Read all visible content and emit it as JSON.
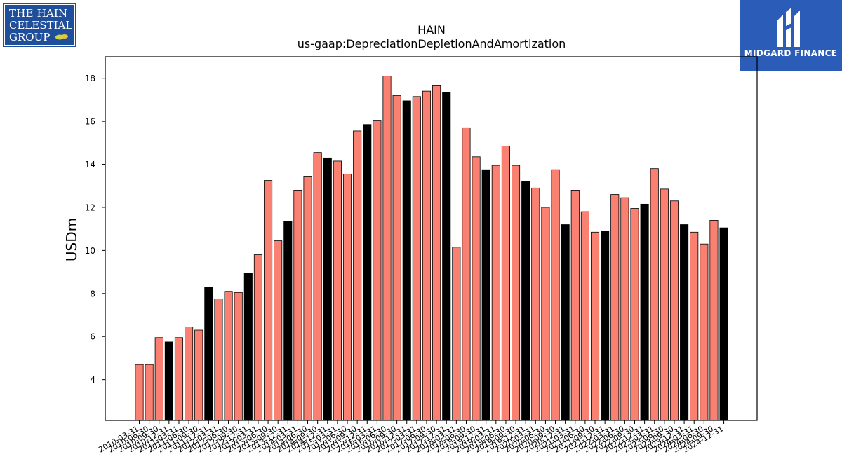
{
  "logos": {
    "left_lines": [
      "THE HAIN",
      "CELESTIAL",
      "GROUP"
    ],
    "right_name": "MIDGARD FINANCE"
  },
  "colors": {
    "salmon": "#fa8072",
    "black": "#000000",
    "left_logo_bg": "#1f4e9a",
    "right_logo_bg": "#2a5cb8"
  },
  "chart_data": {
    "type": "bar",
    "title": "HAIN",
    "subtitle": "us-gaap:DepreciationDepletionAndAmortization",
    "ylabel": "USDm",
    "xlabel": "",
    "ylim": [
      2.1,
      19.0
    ],
    "yticks": [
      4,
      6,
      8,
      10,
      12,
      14,
      16,
      18
    ],
    "grid": false,
    "categories": [
      "2010-03-31",
      "2010-06-30",
      "2010-09-30",
      "2010-12-31",
      "2011-03-31",
      "2011-06-30",
      "2011-09-30",
      "2011-12-31",
      "2012-03-31",
      "2012-06-30",
      "2012-09-30",
      "2012-12-31",
      "2013-03-31",
      "2013-06-30",
      "2013-09-30",
      "2013-12-31",
      "2014-03-31",
      "2014-06-30",
      "2014-09-30",
      "2014-12-31",
      "2015-03-31",
      "2015-06-30",
      "2015-09-30",
      "2015-12-31",
      "2016-03-31",
      "2016-06-30",
      "2016-09-30",
      "2016-12-31",
      "2017-03-31",
      "2017-06-30",
      "2017-09-30",
      "2017-12-31",
      "2018-03-31",
      "2018-06-30",
      "2018-09-30",
      "2018-12-31",
      "2019-03-31",
      "2019-06-30",
      "2019-09-30",
      "2019-12-31",
      "2020-03-31",
      "2020-06-30",
      "2020-09-30",
      "2020-12-31",
      "2021-03-31",
      "2021-06-30",
      "2021-09-30",
      "2021-12-31",
      "2022-03-31",
      "2022-06-30",
      "2022-09-30",
      "2022-12-31",
      "2023-03-31",
      "2023-06-30",
      "2023-09-30",
      "2023-12-31",
      "2024-03-31",
      "2024-06-30",
      "2024-09-30",
      "2024-12-31"
    ],
    "values": [
      4.7,
      4.7,
      5.95,
      5.75,
      5.95,
      6.45,
      6.3,
      8.3,
      7.75,
      8.1,
      8.05,
      8.95,
      9.8,
      13.25,
      10.45,
      11.35,
      12.8,
      13.45,
      14.55,
      14.3,
      14.15,
      13.55,
      15.55,
      15.85,
      16.05,
      18.1,
      17.2,
      16.95,
      17.15,
      17.4,
      17.65,
      17.35,
      10.15,
      15.7,
      14.35,
      13.75,
      13.95,
      14.85,
      13.95,
      13.2,
      12.9,
      12.0,
      13.75,
      11.2,
      12.8,
      11.8,
      10.85,
      10.9,
      12.6,
      12.45,
      11.95,
      12.15,
      13.8,
      12.85,
      12.3,
      11.2,
      10.85,
      10.3,
      11.4,
      11.05
    ],
    "black_bar_indices": [
      3,
      7,
      11,
      15,
      19,
      23,
      27,
      31,
      35,
      39,
      43,
      47,
      51,
      55,
      59
    ]
  }
}
